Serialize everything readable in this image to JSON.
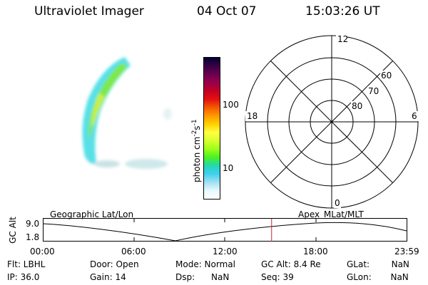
{
  "header": {
    "title": "Ultraviolet Imager",
    "date": "04 Oct 07",
    "time": "15:03:26 UT"
  },
  "colorbar": {
    "label": "photon cm",
    "label_exp1": "-2",
    "label_mid": "s",
    "label_exp2": "-1",
    "tick_100": "100",
    "tick_10": "10",
    "colors": [
      "#000033",
      "#3a0044",
      "#6a0050",
      "#99004a",
      "#c40024",
      "#e21010",
      "#f55a00",
      "#ff9a00",
      "#ffd000",
      "#ffff40",
      "#d8ff30",
      "#9cff1a",
      "#4cf020",
      "#20d8b0",
      "#40d0f0",
      "#a0e0f0",
      "#e8f8ff",
      "#ffffff"
    ]
  },
  "polar": {
    "mlt_12": "12",
    "mlt_18": "18",
    "mlt_6": "6",
    "mlt_0": "0",
    "lat_60": "60",
    "lat_70": "70",
    "lat_80": "80"
  },
  "timeline": {
    "left_title": "Geographic Lat/Lon",
    "right_title": "Apex MLat/MLT",
    "ylabel": "GC Alt",
    "y_top": "9.0",
    "y_bottom": "1.8",
    "t0": "00:00",
    "t1": "06:00",
    "t2": "12:00",
    "t3": "18:00",
    "t4": "23:59",
    "current_time_hours": 15.06
  },
  "info": {
    "flt": "Flt: LBHL",
    "ip": "IP: 36.0",
    "door": "Door: Open",
    "gain": "Gain: 14",
    "mode": "Mode: Normal",
    "dsp": "Dsp:      NaN",
    "gcalt": "GC Alt: 8.4 Re",
    "seq": "Seq: 39",
    "glat": "GLat:        NaN",
    "glon": "GLon:       NaN"
  }
}
